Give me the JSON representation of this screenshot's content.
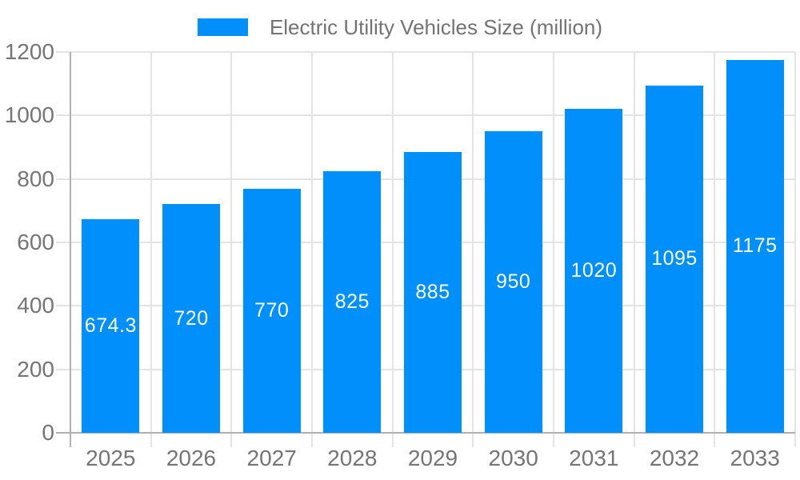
{
  "chart_data": {
    "type": "bar",
    "title": "Electric Utility Vehicles Size (million)",
    "legend": [
      "Electric Utility Vehicles Size (million)"
    ],
    "legend_position": "top-center",
    "categories": [
      "2025",
      "2026",
      "2027",
      "2028",
      "2029",
      "2030",
      "2031",
      "2032",
      "2033"
    ],
    "values": [
      674.3,
      720,
      770,
      825,
      885,
      950,
      1020,
      1095,
      1175
    ],
    "value_labels": [
      "674.3",
      "720",
      "770",
      "825",
      "885",
      "950",
      "1020",
      "1095",
      "1175"
    ],
    "xlabel": "",
    "ylabel": "",
    "ylim": [
      0,
      1200
    ],
    "yticks": [
      0,
      200,
      400,
      600,
      800,
      1000,
      1200
    ],
    "ytick_labels": [
      "0",
      "200",
      "400",
      "600",
      "800",
      "1000",
      "1200"
    ],
    "grid_horizontal": true,
    "grid_vertical_boundaries": true,
    "colors": {
      "bar": "#008FFB",
      "value_label": "#ffffff",
      "axis_label": "#757575",
      "legend_text": "#737373",
      "grid_line": "#e4e4e4",
      "axis_line": "#b1b1b1",
      "background": "#ffffff"
    }
  }
}
